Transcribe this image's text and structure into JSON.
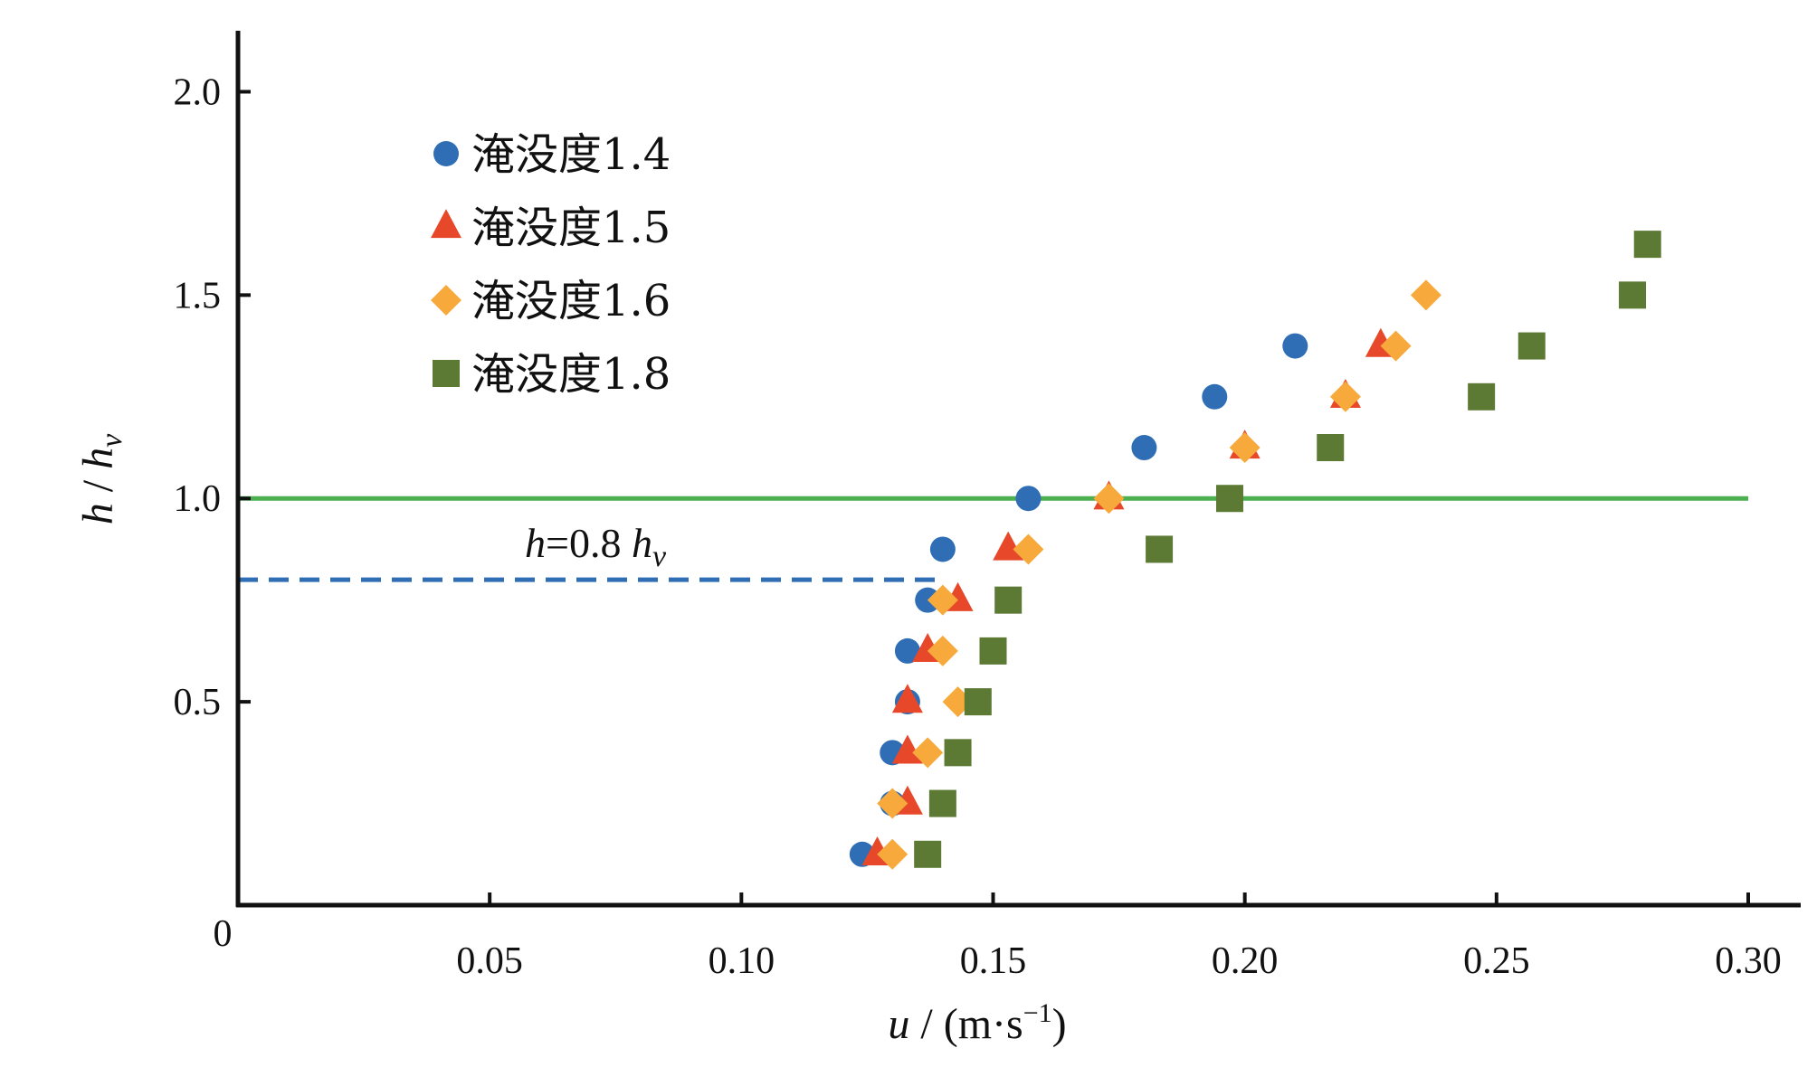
{
  "chart_data": {
    "type": "scatter",
    "title": "",
    "xlabel": {
      "var": "u",
      "sep": " / (m·s",
      "sup": "−1",
      "close": ")"
    },
    "ylabel": {
      "num": "h",
      "sep": " / ",
      "den": "h",
      "sub": "v"
    },
    "xlim": [
      0,
      0.3
    ],
    "ylim": [
      0,
      2.15
    ],
    "xticks": [
      0.05,
      0.1,
      0.15,
      0.2,
      0.25,
      0.3
    ],
    "xtick_labels": [
      "0.05",
      "0.10",
      "0.15",
      "0.20",
      "0.25",
      "0.30"
    ],
    "yticks": [
      0.5,
      1.0,
      1.5,
      2.0
    ],
    "ytick_labels": [
      "0.5",
      "1.0",
      "1.5",
      "2.0"
    ],
    "origin_label": "0",
    "legend_position": "top-left",
    "series": [
      {
        "name": "淹没度1.4",
        "marker": "circle",
        "color": "#2f6eb5",
        "points": [
          [
            0.124,
            0.125
          ],
          [
            0.13,
            0.25
          ],
          [
            0.13,
            0.375
          ],
          [
            0.133,
            0.5
          ],
          [
            0.133,
            0.625
          ],
          [
            0.137,
            0.75
          ],
          [
            0.14,
            0.875
          ],
          [
            0.157,
            1.0
          ],
          [
            0.18,
            1.125
          ],
          [
            0.194,
            1.25
          ],
          [
            0.21,
            1.375
          ]
        ]
      },
      {
        "name": "淹没度1.5",
        "marker": "triangle",
        "color": "#e8482a",
        "points": [
          [
            0.127,
            0.125
          ],
          [
            0.133,
            0.25
          ],
          [
            0.133,
            0.375
          ],
          [
            0.133,
            0.5
          ],
          [
            0.137,
            0.625
          ],
          [
            0.143,
            0.75
          ],
          [
            0.153,
            0.875
          ],
          [
            0.173,
            1.0
          ],
          [
            0.2,
            1.125
          ],
          [
            0.22,
            1.25
          ],
          [
            0.227,
            1.375
          ]
        ]
      },
      {
        "name": "淹没度1.6",
        "marker": "diamond",
        "color": "#f7a93b",
        "points": [
          [
            0.13,
            0.125
          ],
          [
            0.13,
            0.25
          ],
          [
            0.137,
            0.375
          ],
          [
            0.143,
            0.5
          ],
          [
            0.14,
            0.625
          ],
          [
            0.14,
            0.75
          ],
          [
            0.157,
            0.875
          ],
          [
            0.173,
            1.0
          ],
          [
            0.2,
            1.125
          ],
          [
            0.22,
            1.25
          ],
          [
            0.23,
            1.375
          ],
          [
            0.236,
            1.5
          ]
        ]
      },
      {
        "name": "淹没度1.8",
        "marker": "square",
        "color": "#5c7a34",
        "points": [
          [
            0.137,
            0.125
          ],
          [
            0.14,
            0.25
          ],
          [
            0.143,
            0.375
          ],
          [
            0.147,
            0.5
          ],
          [
            0.15,
            0.625
          ],
          [
            0.153,
            0.75
          ],
          [
            0.183,
            0.875
          ],
          [
            0.197,
            1.0
          ],
          [
            0.217,
            1.125
          ],
          [
            0.247,
            1.25
          ],
          [
            0.257,
            1.375
          ],
          [
            0.277,
            1.5
          ],
          [
            0.28,
            1.625
          ]
        ]
      }
    ],
    "reference_lines": [
      {
        "name": "h_v-line",
        "y": 1.0,
        "x_from": 0,
        "x_to": 0.3,
        "style": "solid",
        "color": "#4caf50"
      },
      {
        "name": "0.8hv-line",
        "y": 0.8,
        "x_from": 0,
        "x_to": 0.14,
        "style": "dashed",
        "color": "#2f6eb5"
      }
    ],
    "annotation": {
      "var": "h",
      "eq": "=0.8 ",
      "hv": "h",
      "sub": "v"
    }
  }
}
